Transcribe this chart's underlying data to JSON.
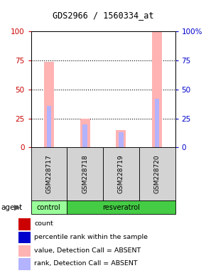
{
  "title": "GDS2966 / 1560334_at",
  "samples": [
    "GSM228717",
    "GSM228718",
    "GSM228719",
    "GSM228720"
  ],
  "bar_data": {
    "pink_bars": [
      74,
      25,
      15,
      100
    ],
    "blue_bars": [
      36,
      20,
      13,
      42
    ]
  },
  "ylim": [
    0,
    100
  ],
  "yticks": [
    0,
    25,
    50,
    75,
    100
  ],
  "ytick_labels_left": [
    "0",
    "25",
    "50",
    "75",
    "100"
  ],
  "ytick_labels_right": [
    "0",
    "25",
    "50",
    "75",
    "100%"
  ],
  "color_pink": "#ffb3b3",
  "color_blue": "#b3b3ff",
  "color_red": "#cc0000",
  "color_darkblue": "#0000cc",
  "group_bg_control": "#99ff99",
  "group_bg_resveratrol": "#44cc44",
  "legend_items": [
    {
      "color": "#cc0000",
      "label": "count"
    },
    {
      "color": "#0000cc",
      "label": "percentile rank within the sample"
    },
    {
      "color": "#ffb3b3",
      "label": "value, Detection Call = ABSENT"
    },
    {
      "color": "#b3b3ff",
      "label": "rank, Detection Call = ABSENT"
    }
  ]
}
